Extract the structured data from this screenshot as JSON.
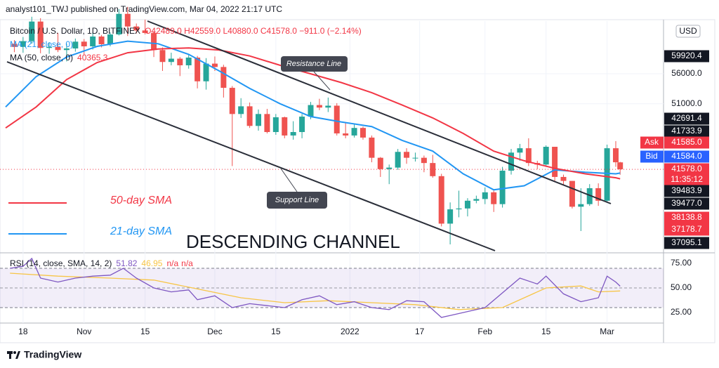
{
  "chart_data": {
    "type": "candlestick",
    "header": "analyst101_TWJ published on TradingView.com, Mar 04, 2022 21:17 UTC",
    "title": "Bitcoin / U.S. Dollar, 1D, BITFINEX",
    "ohlc_text": "O42489.0  H42559.0  L40880.0  C41578.0  −911.0 (−2.14%)",
    "currency": "USD",
    "up_color": "#26a69a",
    "down_color": "#ef5350",
    "x": [
      "2021-10-16",
      "2021-10-18",
      "2021-10-20",
      "2021-10-22",
      "2021-10-24",
      "2021-10-26",
      "2021-10-28",
      "2021-10-30",
      "2021-11-01",
      "2021-11-03",
      "2021-11-05",
      "2021-11-07",
      "2021-11-09",
      "2021-11-11",
      "2021-11-13",
      "2021-11-15",
      "2021-11-17",
      "2021-11-19",
      "2021-11-21",
      "2021-11-23",
      "2021-11-25",
      "2021-11-27",
      "2021-11-29",
      "2021-12-01",
      "2021-12-03",
      "2021-12-05",
      "2021-12-07",
      "2021-12-09",
      "2021-12-11",
      "2021-12-13",
      "2021-12-15",
      "2021-12-17",
      "2021-12-19",
      "2021-12-21",
      "2021-12-23",
      "2021-12-25",
      "2021-12-27",
      "2021-12-29",
      "2021-12-31",
      "2022-01-02",
      "2022-01-04",
      "2022-01-06",
      "2022-01-08",
      "2022-01-10",
      "2022-01-12",
      "2022-01-14",
      "2022-01-16",
      "2022-01-18",
      "2022-01-20",
      "2022-01-22",
      "2022-01-24",
      "2022-01-26",
      "2022-01-28",
      "2022-01-30",
      "2022-02-01",
      "2022-02-03",
      "2022-02-05",
      "2022-02-07",
      "2022-02-09",
      "2022-02-11",
      "2022-02-13",
      "2022-02-15",
      "2022-02-17",
      "2022-02-19",
      "2022-02-21",
      "2022-02-23",
      "2022-02-25",
      "2022-02-27",
      "2022-03-01",
      "2022-03-03",
      "2022-03-04"
    ],
    "open": [
      61500,
      60900,
      62000,
      65900,
      60700,
      60900,
      60300,
      60600,
      61900,
      61000,
      62900,
      61400,
      63300,
      67500,
      64900,
      64100,
      63600,
      60300,
      58100,
      58700,
      57500,
      58900,
      54700,
      57800,
      57200,
      53600,
      49400,
      50600,
      47600,
      49400,
      46700,
      48900,
      46200,
      46700,
      49000,
      50800,
      50400,
      50700,
      46500,
      46200,
      47300,
      45900,
      43100,
      41600,
      41800,
      43900,
      43100,
      43100,
      42400,
      40700,
      35100,
      36700,
      36800,
      37700,
      37900,
      38700,
      37300,
      41400,
      43800,
      44400,
      42400,
      42200,
      44600,
      40600,
      40100,
      37000,
      37300,
      39200,
      37700,
      44400,
      42489
    ],
    "high": [
      62200,
      62800,
      66900,
      66600,
      61800,
      63600,
      61500,
      62500,
      62400,
      63700,
      63200,
      63700,
      68500,
      69000,
      65500,
      66300,
      63900,
      60800,
      59800,
      59000,
      59400,
      59200,
      58800,
      59100,
      57600,
      53900,
      51900,
      51200,
      50100,
      50200,
      49400,
      49000,
      48300,
      49400,
      51300,
      51800,
      52000,
      51100,
      48000,
      47800,
      47500,
      46200,
      43200,
      42200,
      44300,
      44400,
      43800,
      43400,
      43500,
      41000,
      37500,
      38900,
      38000,
      38300,
      39300,
      38900,
      41900,
      44300,
      45000,
      45800,
      42700,
      44800,
      44600,
      40900,
      40100,
      39200,
      39700,
      39800,
      44900,
      45400,
      42559
    ],
    "low": [
      59900,
      59800,
      61500,
      59700,
      59600,
      59900,
      58200,
      60000,
      59500,
      60400,
      60800,
      61000,
      63100,
      63000,
      63500,
      63300,
      59000,
      56500,
      57500,
      55600,
      56900,
      53500,
      53300,
      56500,
      52000,
      42000,
      48800,
      47300,
      46900,
      46500,
      46300,
      45800,
      45600,
      45800,
      48600,
      50000,
      49700,
      46200,
      45800,
      45900,
      45600,
      42500,
      40600,
      39700,
      41500,
      42300,
      42600,
      41200,
      40500,
      34800,
      32900,
      35800,
      35900,
      37400,
      37300,
      36400,
      36900,
      40900,
      42700,
      42000,
      41600,
      41900,
      40100,
      39600,
      36800,
      34300,
      37100,
      37100,
      37500,
      41900,
      40880
    ],
    "close": [
      60900,
      62000,
      65900,
      60700,
      60900,
      60300,
      60600,
      61900,
      61000,
      62900,
      61400,
      63300,
      67500,
      64900,
      64100,
      63600,
      60300,
      58100,
      58700,
      57500,
      58900,
      54700,
      57800,
      57200,
      53600,
      49400,
      50600,
      47600,
      49400,
      46700,
      48900,
      46200,
      46700,
      49000,
      50800,
      50400,
      50700,
      46500,
      46200,
      47300,
      45900,
      43100,
      41600,
      41800,
      43900,
      43100,
      43100,
      42400,
      40700,
      35100,
      36700,
      36800,
      37700,
      37900,
      38700,
      37300,
      41400,
      43800,
      44400,
      42400,
      42200,
      44600,
      40600,
      40100,
      37000,
      37300,
      39200,
      37700,
      44400,
      42500,
      41578
    ],
    "xlim": [
      "2021-10-12T17:00Z",
      "2022-03-13T23:00Z"
    ],
    "xticks": [
      {
        "value": "2021-10-18",
        "label": "18"
      },
      {
        "value": "2021-11-01",
        "label": "Nov"
      },
      {
        "value": "2021-11-15",
        "label": "15"
      },
      {
        "value": "2021-12-01",
        "label": "Dec"
      },
      {
        "value": "2021-12-15",
        "label": "15"
      },
      {
        "value": "2022-01-01",
        "label": "2022"
      },
      {
        "value": "2022-01-17",
        "label": "17"
      },
      {
        "value": "2022-02-01",
        "label": "Feb"
      },
      {
        "value": "2022-02-15",
        "label": "15"
      },
      {
        "value": "2022-03-01",
        "label": "Mar"
      }
    ],
    "ylim": [
      32400,
      66000
    ],
    "log_scale": true,
    "grid": true,
    "yticks": [
      {
        "value": 56000,
        "label": "56000.0"
      },
      {
        "value": 51000,
        "label": "51000.0"
      }
    ],
    "series": [
      {
        "name": "21-day SMA",
        "legend_label": "MA (21, close, 0)",
        "color": "#2196f3",
        "x": [
          "2021-10-14",
          "2021-10-21",
          "2021-10-28",
          "2021-11-04",
          "2021-11-11",
          "2021-11-18",
          "2021-11-25",
          "2021-12-02",
          "2021-12-09",
          "2021-12-16",
          "2021-12-23",
          "2021-12-30",
          "2022-01-06",
          "2022-01-13",
          "2022-01-20",
          "2022-01-27",
          "2022-02-03",
          "2022-02-10",
          "2022-02-17",
          "2022-02-24",
          "2022-03-03",
          "2022-03-04"
        ],
        "values": [
          50500,
          55500,
          59000,
          61000,
          62000,
          61500,
          59500,
          56500,
          53500,
          51000,
          49000,
          48200,
          47500,
          45500,
          44000,
          41000,
          39000,
          39500,
          41500,
          41200,
          41000,
          41100
        ]
      },
      {
        "name": "50-day SMA",
        "legend_label": "MA (50, close, 0)",
        "last_label": 40365.3,
        "color": "#f23645",
        "x": [
          "2021-10-14",
          "2021-10-21",
          "2021-10-28",
          "2021-11-04",
          "2021-11-11",
          "2021-11-18",
          "2021-11-25",
          "2021-12-02",
          "2021-12-09",
          "2021-12-16",
          "2021-12-23",
          "2021-12-30",
          "2022-01-06",
          "2022-01-13",
          "2022-01-20",
          "2022-01-27",
          "2022-02-03",
          "2022-02-10",
          "2022-02-17",
          "2022-02-24",
          "2022-03-03",
          "2022-03-04"
        ],
        "values": [
          47300,
          50500,
          55000,
          58000,
          59800,
          60500,
          60700,
          60300,
          59200,
          57500,
          56000,
          54500,
          52800,
          50800,
          48800,
          46500,
          44000,
          42700,
          41700,
          41000,
          40500,
          40365.3
        ]
      }
    ],
    "annotations": {
      "resistance": "Resistance Line",
      "support": "Support Line",
      "channel": "DESCENDING CHANNEL"
    },
    "price_labels": [
      {
        "value": 59920.4,
        "color": "#131722"
      },
      {
        "value": 42691.4,
        "color": "#131722"
      },
      {
        "value": 41733.9,
        "color": "#131722"
      },
      {
        "value": 41585,
        "label": "41585.0",
        "tag": "Ask",
        "color": "#f23645"
      },
      {
        "value": 41584,
        "label": "41584.0",
        "tag": "Bid",
        "color": "#2962ff"
      },
      {
        "value": 41578,
        "label": "41578.0",
        "countdown": "11:35:12",
        "color": "#f23645"
      },
      {
        "value": 39483.9,
        "color": "#131722"
      },
      {
        "value": 39477,
        "label": "39477.0",
        "color": "#131722"
      },
      {
        "value": 38138.8,
        "color": "#f23645"
      },
      {
        "value": 37178.7,
        "color": "#f23645"
      },
      {
        "value": 37095.1,
        "color": "#131722"
      }
    ],
    "rsi": {
      "type": "line",
      "label": "RSI (14, close, SMA, 14, 2)",
      "readouts": [
        51.82,
        46.95,
        "n/a",
        "n/a"
      ],
      "color": "#7e57c2",
      "ma_color": "#f7c546",
      "x": [
        "2021-10-15",
        "2021-10-18",
        "2021-10-20",
        "2021-10-22",
        "2021-10-26",
        "2021-10-30",
        "2021-11-03",
        "2021-11-07",
        "2021-11-10",
        "2021-11-13",
        "2021-11-17",
        "2021-11-21",
        "2021-11-25",
        "2021-11-27",
        "2021-12-01",
        "2021-12-05",
        "2021-12-09",
        "2021-12-13",
        "2021-12-17",
        "2021-12-21",
        "2021-12-25",
        "2021-12-29",
        "2022-01-02",
        "2022-01-06",
        "2022-01-10",
        "2022-01-14",
        "2022-01-18",
        "2022-01-22",
        "2022-01-24",
        "2022-01-28",
        "2022-02-01",
        "2022-02-05",
        "2022-02-09",
        "2022-02-13",
        "2022-02-15",
        "2022-02-19",
        "2022-02-23",
        "2022-02-27",
        "2022-03-01",
        "2022-03-03",
        "2022-03-04"
      ],
      "values": [
        70,
        72,
        80,
        60,
        56,
        60,
        62,
        63,
        70,
        60,
        50,
        46,
        48,
        38,
        42,
        30,
        34,
        32,
        30,
        38,
        42,
        33,
        36,
        30,
        28,
        37,
        36,
        20,
        22,
        26,
        30,
        45,
        60,
        54,
        62,
        44,
        36,
        40,
        62,
        56,
        51.82
      ],
      "ma_x": [
        "2021-10-15",
        "2021-10-26",
        "2021-11-07",
        "2021-11-17",
        "2021-11-27",
        "2021-12-07",
        "2021-12-17",
        "2021-12-27",
        "2022-01-06",
        "2022-01-16",
        "2022-01-26",
        "2022-02-05",
        "2022-02-15",
        "2022-02-23",
        "2022-02-27",
        "2022-03-04"
      ],
      "ma_values": [
        65,
        62,
        60,
        58,
        49,
        40,
        35,
        37,
        35,
        33,
        28,
        30,
        50,
        52,
        46,
        46.95
      ],
      "ylim": [
        14.3,
        85.7
      ],
      "yticks": [
        {
          "value": 75,
          "label": "75.00"
        },
        {
          "value": 50,
          "label": "50.00"
        },
        {
          "value": 25,
          "label": "25.00"
        }
      ],
      "bands": [
        30,
        70
      ]
    },
    "footer": "TradingView"
  }
}
